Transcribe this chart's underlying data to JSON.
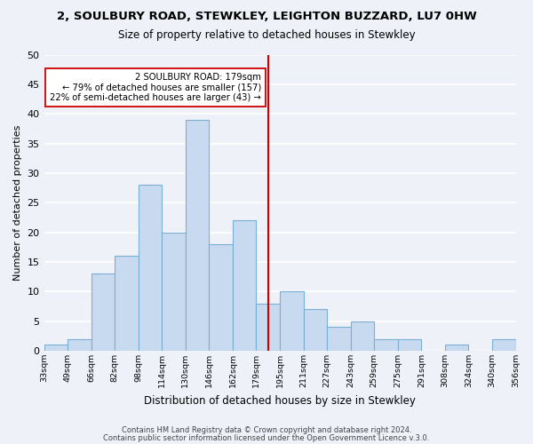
{
  "title": "2, SOULBURY ROAD, STEWKLEY, LEIGHTON BUZZARD, LU7 0HW",
  "subtitle": "Size of property relative to detached houses in Stewkley",
  "xlabel": "Distribution of detached houses by size in Stewkley",
  "ylabel": "Number of detached properties",
  "bar_color": "#c8daf0",
  "bar_edge_color": "#7aafd4",
  "tick_labels": [
    "33sqm",
    "49sqm",
    "66sqm",
    "82sqm",
    "98sqm",
    "114sqm",
    "130sqm",
    "146sqm",
    "162sqm",
    "179sqm",
    "195sqm",
    "211sqm",
    "227sqm",
    "243sqm",
    "259sqm",
    "275sqm",
    "291sqm",
    "308sqm",
    "324sqm",
    "340sqm",
    "356sqm"
  ],
  "values": [
    1,
    2,
    13,
    16,
    28,
    20,
    39,
    18,
    22,
    8,
    10,
    7,
    4,
    5,
    2,
    2,
    0,
    1,
    0,
    2
  ],
  "vline_color": "#cc0000",
  "vline_position": 9.5,
  "annotation_line1": "2 SOULBURY ROAD: 179sqm",
  "annotation_line2": "← 79% of detached houses are smaller (157)",
  "annotation_line3": "22% of semi-detached houses are larger (43) →",
  "annotation_box_color": "#ffffff",
  "annotation_box_edge": "#cc0000",
  "ylim": [
    0,
    50
  ],
  "yticks": [
    0,
    5,
    10,
    15,
    20,
    25,
    30,
    35,
    40,
    45,
    50
  ],
  "footer1": "Contains HM Land Registry data © Crown copyright and database right 2024.",
  "footer2": "Contains public sector information licensed under the Open Government Licence v.3.0.",
  "background_color": "#eef2f8",
  "grid_color": "#ffffff"
}
